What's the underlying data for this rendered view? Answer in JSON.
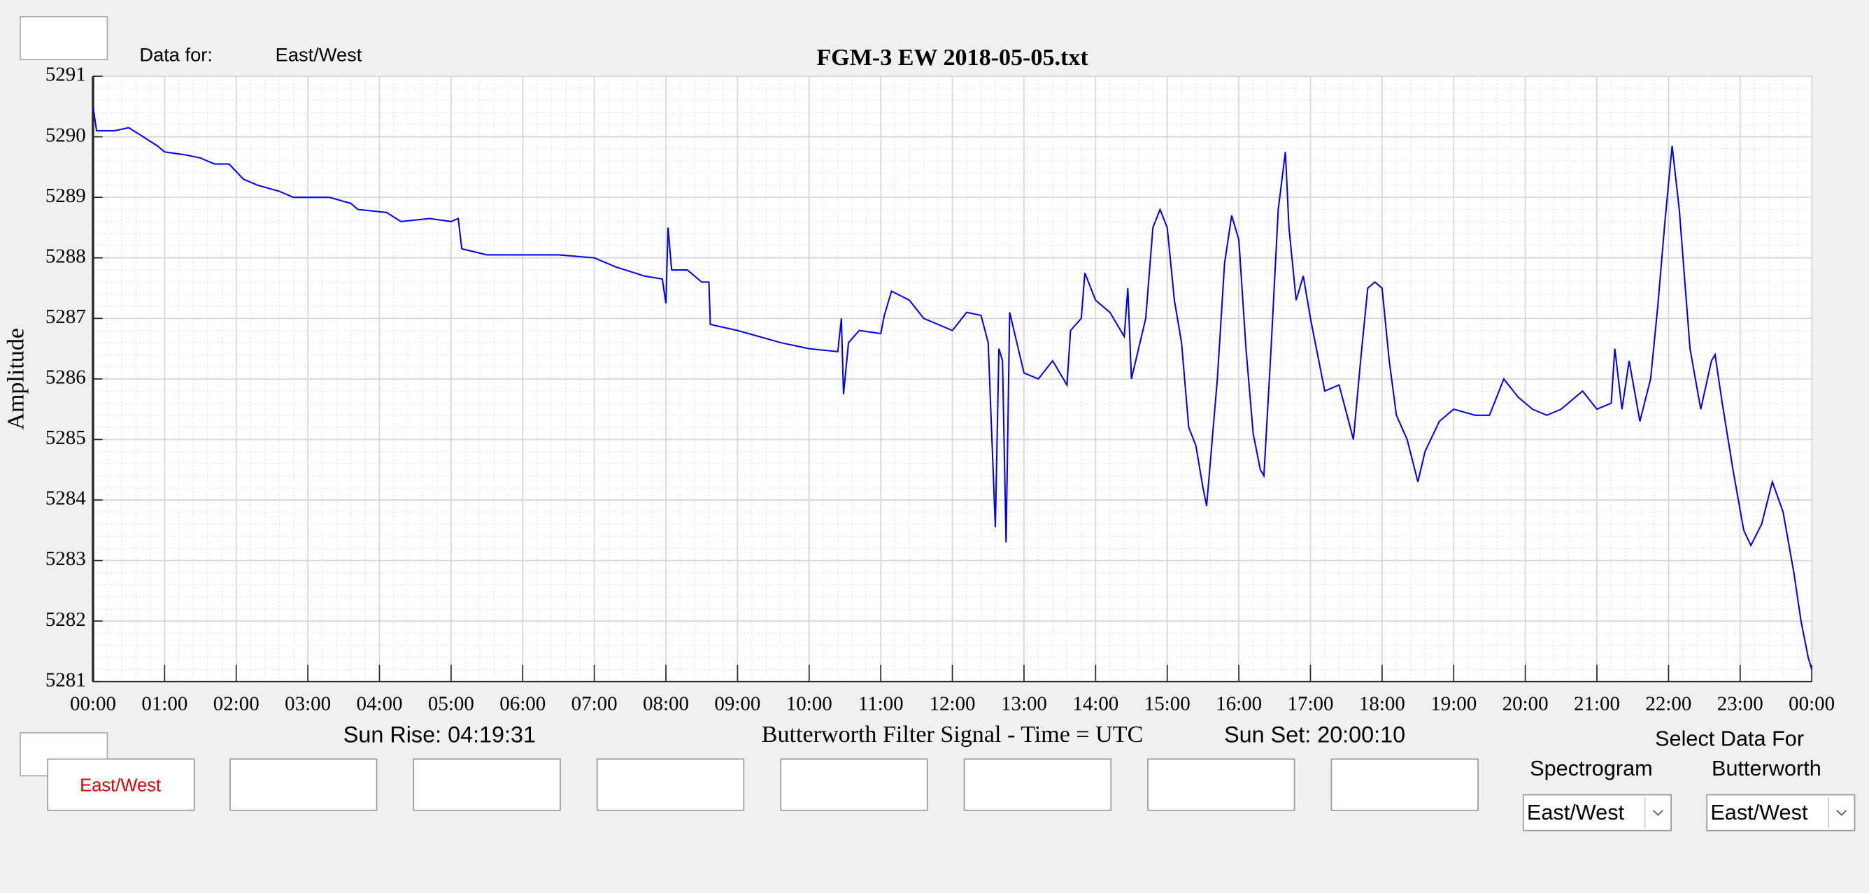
{
  "header": {
    "data_for_label": "Data for:",
    "data_for_value": "East/West"
  },
  "chart_data": {
    "type": "line",
    "title": "FGM-3 EW 2018-05-05.txt",
    "xlabel": "Butterworth Filter Signal - Time = UTC",
    "ylabel": "Amplitude",
    "color": "#0000ee",
    "grid": true,
    "x": [
      0,
      0.05,
      0.3,
      0.5,
      0.7,
      0.9,
      1.0,
      1.3,
      1.5,
      1.7,
      1.9,
      2.1,
      2.3,
      2.6,
      2.8,
      3.3,
      3.6,
      3.7,
      4.1,
      4.3,
      4.7,
      5.0,
      5.1,
      5.15,
      5.5,
      6.0,
      6.5,
      7.0,
      7.3,
      7.7,
      7.95,
      8.0,
      8.03,
      8.08,
      8.3,
      8.5,
      8.6,
      8.62,
      9.0,
      9.3,
      9.6,
      10.0,
      10.4,
      10.45,
      10.48,
      10.55,
      10.7,
      11.0,
      11.05,
      11.15,
      11.4,
      11.6,
      11.8,
      12.0,
      12.2,
      12.4,
      12.5,
      12.6,
      12.65,
      12.7,
      12.75,
      12.8,
      12.9,
      13.0,
      13.2,
      13.4,
      13.5,
      13.6,
      13.65,
      13.8,
      13.85,
      14.0,
      14.2,
      14.4,
      14.45,
      14.5,
      14.7,
      14.8,
      14.9,
      15.0,
      15.1,
      15.2,
      15.3,
      15.4,
      15.5,
      15.55,
      15.7,
      15.8,
      15.9,
      16.0,
      16.1,
      16.2,
      16.3,
      16.35,
      16.45,
      16.55,
      16.65,
      16.7,
      16.8,
      16.9,
      17.0,
      17.1,
      17.2,
      17.4,
      17.6,
      17.7,
      17.8,
      17.9,
      18.0,
      18.1,
      18.2,
      18.35,
      18.5,
      18.6,
      18.8,
      19.0,
      19.3,
      19.5,
      19.7,
      19.9,
      20.1,
      20.3,
      20.5,
      20.8,
      21.0,
      21.2,
      21.25,
      21.35,
      21.45,
      21.6,
      21.75,
      21.85,
      21.95,
      22.05,
      22.15,
      22.3,
      22.45,
      22.6,
      22.65,
      22.75,
      22.9,
      23.05,
      23.15,
      23.3,
      23.45,
      23.6,
      23.75,
      23.85,
      23.95,
      24.0
    ],
    "values": [
      5290.5,
      5290.1,
      5290.1,
      5290.15,
      5290.0,
      5289.85,
      5289.75,
      5289.7,
      5289.65,
      5289.55,
      5289.55,
      5289.3,
      5289.2,
      5289.1,
      5289.0,
      5289.0,
      5288.9,
      5288.8,
      5288.75,
      5288.6,
      5288.65,
      5288.6,
      5288.65,
      5288.15,
      5288.05,
      5288.05,
      5288.05,
      5288.0,
      5287.85,
      5287.7,
      5287.65,
      5287.25,
      5288.5,
      5287.8,
      5287.8,
      5287.6,
      5287.6,
      5286.9,
      5286.8,
      5286.7,
      5286.6,
      5286.5,
      5286.45,
      5287.0,
      5285.75,
      5286.6,
      5286.8,
      5286.75,
      5287.05,
      5287.45,
      5287.3,
      5287.0,
      5286.9,
      5286.8,
      5287.1,
      5287.05,
      5286.6,
      5283.55,
      5286.5,
      5286.3,
      5283.3,
      5287.1,
      5286.6,
      5286.1,
      5286.0,
      5286.3,
      5286.1,
      5285.9,
      5286.8,
      5287.0,
      5287.75,
      5287.3,
      5287.1,
      5286.7,
      5287.5,
      5286.0,
      5287.0,
      5288.5,
      5288.8,
      5288.5,
      5287.3,
      5286.6,
      5285.2,
      5284.9,
      5284.2,
      5283.9,
      5286.0,
      5287.9,
      5288.7,
      5288.3,
      5286.5,
      5285.1,
      5284.5,
      5284.4,
      5286.5,
      5288.8,
      5289.75,
      5288.5,
      5287.3,
      5287.7,
      5287.0,
      5286.4,
      5285.8,
      5285.9,
      5285.0,
      5286.3,
      5287.5,
      5287.6,
      5287.5,
      5286.3,
      5285.4,
      5285.0,
      5284.3,
      5284.8,
      5285.3,
      5285.5,
      5285.4,
      5285.4,
      5286.0,
      5285.7,
      5285.5,
      5285.4,
      5285.5,
      5285.8,
      5285.5,
      5285.6,
      5286.5,
      5285.5,
      5286.3,
      5285.3,
      5286.0,
      5287.2,
      5288.6,
      5289.85,
      5288.8,
      5286.5,
      5285.5,
      5286.3,
      5286.4,
      5285.6,
      5284.5,
      5283.5,
      5283.25,
      5283.6,
      5284.3,
      5283.8,
      5282.8,
      5282.0,
      5281.4,
      5281.2
    ],
    "xlim": [
      0,
      24
    ],
    "xticks": [
      {
        "value": 0,
        "label": "00:00"
      },
      {
        "value": 1,
        "label": "01:00"
      },
      {
        "value": 2,
        "label": "02:00"
      },
      {
        "value": 3,
        "label": "03:00"
      },
      {
        "value": 4,
        "label": "04:00"
      },
      {
        "value": 5,
        "label": "05:00"
      },
      {
        "value": 6,
        "label": "06:00"
      },
      {
        "value": 7,
        "label": "07:00"
      },
      {
        "value": 8,
        "label": "08:00"
      },
      {
        "value": 9,
        "label": "09:00"
      },
      {
        "value": 10,
        "label": "10:00"
      },
      {
        "value": 11,
        "label": "11:00"
      },
      {
        "value": 12,
        "label": "12:00"
      },
      {
        "value": 13,
        "label": "13:00"
      },
      {
        "value": 14,
        "label": "14:00"
      },
      {
        "value": 15,
        "label": "15:00"
      },
      {
        "value": 16,
        "label": "16:00"
      },
      {
        "value": 17,
        "label": "17:00"
      },
      {
        "value": 18,
        "label": "18:00"
      },
      {
        "value": 19,
        "label": "19:00"
      },
      {
        "value": 20,
        "label": "20:00"
      },
      {
        "value": 21,
        "label": "21:00"
      },
      {
        "value": 22,
        "label": "22:00"
      },
      {
        "value": 23,
        "label": "23:00"
      },
      {
        "value": 24,
        "label": "00:00"
      }
    ],
    "ylim": [
      5281,
      5291
    ],
    "yticks": [
      5281,
      5282,
      5283,
      5284,
      5285,
      5286,
      5287,
      5288,
      5289,
      5290,
      5291
    ]
  },
  "sun": {
    "rise": "Sun Rise: 04:19:31",
    "set": "Sun Set: 20:00:10"
  },
  "tabs": {
    "first": "East/West"
  },
  "selector": {
    "title": "Select Data For",
    "spectrogram_label": "Spectrogram",
    "spectrogram_value": "East/West",
    "butterworth_label": "Butterworth",
    "butterworth_value": "East/West"
  }
}
